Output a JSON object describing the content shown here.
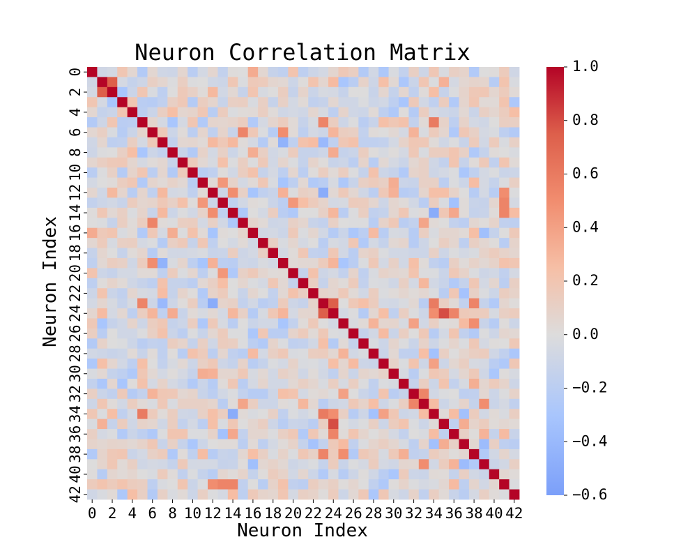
{
  "chart_data": {
    "type": "heatmap",
    "title": "Neuron Correlation Matrix",
    "xlabel": "Neuron Index",
    "ylabel": "Neuron Index",
    "n": 43,
    "x_tick_labels": [
      "0",
      "2",
      "4",
      "6",
      "8",
      "10",
      "12",
      "14",
      "16",
      "18",
      "20",
      "22",
      "24",
      "26",
      "28",
      "30",
      "32",
      "34",
      "36",
      "38",
      "40",
      "42"
    ],
    "y_tick_labels": [
      "0",
      "2",
      "4",
      "6",
      "8",
      "10",
      "12",
      "14",
      "16",
      "18",
      "20",
      "22",
      "24",
      "26",
      "28",
      "30",
      "32",
      "34",
      "36",
      "38",
      "40",
      "42"
    ],
    "colorbar": {
      "colormap": "coolwarm",
      "vmin": -0.6,
      "vmax": 1.0,
      "center": 0.0,
      "tick_labels": [
        "1.0",
        "0.8",
        "0.6",
        "0.4",
        "0.2",
        "0.0",
        "−0.2",
        "−0.4",
        "−0.6"
      ]
    },
    "colors": {
      "negative": "#7b9ff9",
      "neutral": "#dddcdc",
      "positive": "#b40426"
    },
    "diagonal_value": 1.0,
    "notable_correlations": [
      {
        "i": 1,
        "j": 2,
        "value": 0.75
      },
      {
        "i": 23,
        "j": 24,
        "value": 0.75
      },
      {
        "i": 24,
        "j": 35,
        "value": 0.8
      },
      {
        "i": 24,
        "j": 34,
        "value": 0.5
      },
      {
        "i": 23,
        "j": 34,
        "value": 0.6
      },
      {
        "i": 5,
        "j": 23,
        "value": 0.55
      },
      {
        "i": 5,
        "j": 34,
        "value": 0.6
      },
      {
        "i": 6,
        "j": 15,
        "value": 0.55
      },
      {
        "i": 6,
        "j": 19,
        "value": 0.5
      },
      {
        "i": 11,
        "j": 13,
        "value": 0.45
      },
      {
        "i": 12,
        "j": 14,
        "value": 0.5
      },
      {
        "i": 12,
        "j": 41,
        "value": 0.5
      },
      {
        "i": 13,
        "j": 41,
        "value": 0.55
      },
      {
        "i": 12,
        "j": 23,
        "value": -0.5
      },
      {
        "i": 14,
        "j": 34,
        "value": -0.5
      },
      {
        "i": 7,
        "j": 19,
        "value": -0.45
      },
      {
        "i": 7,
        "j": 23,
        "value": -0.4
      },
      {
        "i": 5,
        "j": 8,
        "value": -0.3
      },
      {
        "i": 20,
        "j": 13,
        "value": 0.45
      },
      {
        "i": 25,
        "j": 32,
        "value": 0.4
      },
      {
        "i": 29,
        "j": 34,
        "value": 0.4
      },
      {
        "i": 32,
        "j": 33,
        "value": 0.55
      },
      {
        "i": 33,
        "j": 39,
        "value": 0.5
      },
      {
        "i": 36,
        "j": 24,
        "value": 0.55
      },
      {
        "i": 38,
        "j": 23,
        "value": 0.55
      },
      {
        "i": 38,
        "j": 25,
        "value": 0.5
      },
      {
        "i": 41,
        "j": 12,
        "value": 0.5
      },
      {
        "i": 41,
        "j": 14,
        "value": 0.55
      },
      {
        "i": 2,
        "j": 3,
        "value": -0.3
      },
      {
        "i": 0,
        "j": 16,
        "value": 0.35
      }
    ]
  }
}
